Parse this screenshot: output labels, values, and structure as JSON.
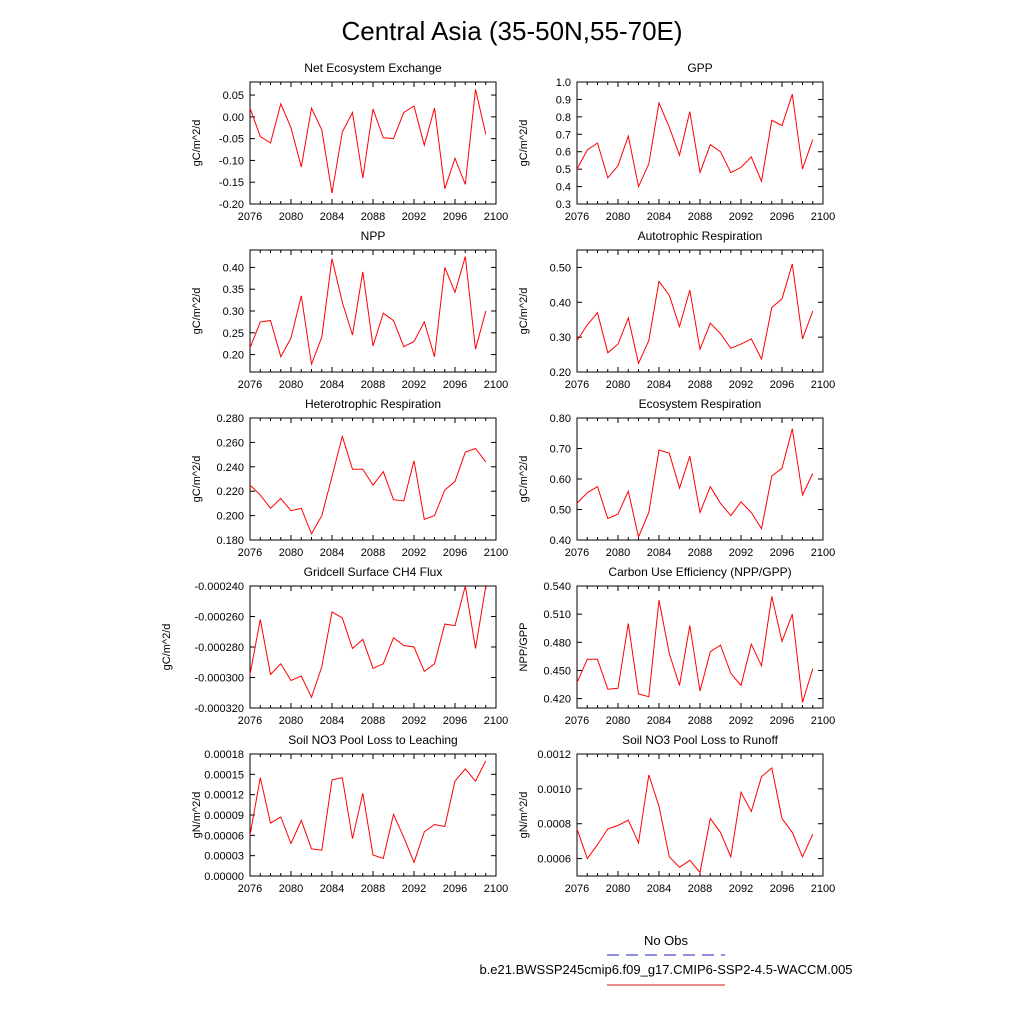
{
  "figure": {
    "title": "Central Asia (35-50N,55-70E)",
    "line_color": "#ff0000",
    "obs_color": "#4b4bd0"
  },
  "legend": {
    "items": [
      {
        "label": "No Obs",
        "style": "dashed",
        "color": "#4b4bd0"
      },
      {
        "label": "b.e21.BWSSP245cmip6.f09_g17.CMIP6-SSP2-4.5-WACCM.005",
        "style": "solid",
        "color": "#e04040"
      }
    ]
  },
  "chart_data": [
    {
      "type": "line",
      "title": "Net Ecosystem Exchange",
      "ylabel": "gC/m^2/d",
      "xlim": [
        2076,
        2100
      ],
      "ylim": [
        -0.2,
        0.08
      ],
      "xticks": [
        2076,
        2080,
        2084,
        2088,
        2092,
        2096,
        2100
      ],
      "yticks": [
        -0.2,
        -0.15,
        -0.1,
        -0.05,
        0.0,
        0.05
      ],
      "ytick_labels": [
        "-0.20",
        "-0.15",
        "-0.10",
        "-0.05",
        "0.00",
        "0.05"
      ],
      "x": [
        2076,
        2077,
        2078,
        2079,
        2080,
        2081,
        2082,
        2083,
        2084,
        2085,
        2086,
        2087,
        2088,
        2089,
        2090,
        2091,
        2092,
        2093,
        2094,
        2095,
        2096,
        2097,
        2098,
        2099
      ],
      "y": [
        0.02,
        -0.045,
        -0.06,
        0.03,
        -0.025,
        -0.115,
        0.02,
        -0.03,
        -0.175,
        -0.035,
        0.01,
        -0.14,
        0.018,
        -0.048,
        -0.05,
        0.01,
        0.025,
        -0.065,
        0.02,
        -0.165,
        -0.095,
        -0.155,
        0.063,
        -0.04
      ]
    },
    {
      "type": "line",
      "title": "GPP",
      "ylabel": "gC/m^2/d",
      "xlim": [
        2076,
        2100
      ],
      "ylim": [
        0.3,
        1.0
      ],
      "xticks": [
        2076,
        2080,
        2084,
        2088,
        2092,
        2096,
        2100
      ],
      "yticks": [
        0.3,
        0.4,
        0.5,
        0.6,
        0.7,
        0.8,
        0.9,
        1.0
      ],
      "ytick_labels": [
        "0.3",
        "0.4",
        "0.5",
        "0.6",
        "0.7",
        "0.8",
        "0.9",
        "1.0"
      ],
      "x": [
        2076,
        2077,
        2078,
        2079,
        2080,
        2081,
        2082,
        2083,
        2084,
        2085,
        2086,
        2087,
        2088,
        2089,
        2090,
        2091,
        2092,
        2093,
        2094,
        2095,
        2096,
        2097,
        2098,
        2099
      ],
      "y": [
        0.5,
        0.61,
        0.65,
        0.45,
        0.52,
        0.69,
        0.4,
        0.53,
        0.88,
        0.74,
        0.58,
        0.83,
        0.48,
        0.64,
        0.6,
        0.48,
        0.51,
        0.57,
        0.43,
        0.78,
        0.75,
        0.93,
        0.5,
        0.67
      ]
    },
    {
      "type": "line",
      "title": "NPP",
      "ylabel": "gC/m^2/d",
      "xlim": [
        2076,
        2100
      ],
      "ylim": [
        0.16,
        0.44
      ],
      "xticks": [
        2076,
        2080,
        2084,
        2088,
        2092,
        2096,
        2100
      ],
      "yticks": [
        0.2,
        0.25,
        0.3,
        0.35,
        0.4
      ],
      "ytick_labels": [
        "0.20",
        "0.25",
        "0.30",
        "0.35",
        "0.40"
      ],
      "x": [
        2076,
        2077,
        2078,
        2079,
        2080,
        2081,
        2082,
        2083,
        2084,
        2085,
        2086,
        2087,
        2088,
        2089,
        2090,
        2091,
        2092,
        2093,
        2094,
        2095,
        2096,
        2097,
        2098,
        2099
      ],
      "y": [
        0.215,
        0.275,
        0.278,
        0.195,
        0.238,
        0.335,
        0.178,
        0.24,
        0.42,
        0.32,
        0.245,
        0.39,
        0.22,
        0.295,
        0.278,
        0.218,
        0.23,
        0.275,
        0.195,
        0.4,
        0.343,
        0.425,
        0.212,
        0.3
      ]
    },
    {
      "type": "line",
      "title": "Autotrophic Respiration",
      "ylabel": "gC/m^2/d",
      "xlim": [
        2076,
        2100
      ],
      "ylim": [
        0.2,
        0.55
      ],
      "xticks": [
        2076,
        2080,
        2084,
        2088,
        2092,
        2096,
        2100
      ],
      "yticks": [
        0.2,
        0.3,
        0.4,
        0.5
      ],
      "ytick_labels": [
        "0.20",
        "0.30",
        "0.40",
        "0.50"
      ],
      "x": [
        2076,
        2077,
        2078,
        2079,
        2080,
        2081,
        2082,
        2083,
        2084,
        2085,
        2086,
        2087,
        2088,
        2089,
        2090,
        2091,
        2092,
        2093,
        2094,
        2095,
        2096,
        2097,
        2098,
        2099
      ],
      "y": [
        0.29,
        0.335,
        0.37,
        0.255,
        0.28,
        0.355,
        0.225,
        0.29,
        0.46,
        0.42,
        0.33,
        0.435,
        0.265,
        0.34,
        0.31,
        0.268,
        0.28,
        0.295,
        0.237,
        0.385,
        0.41,
        0.51,
        0.295,
        0.375
      ]
    },
    {
      "type": "line",
      "title": "Heterotrophic Respiration",
      "ylabel": "gC/m^2/d",
      "xlim": [
        2076,
        2100
      ],
      "ylim": [
        0.18,
        0.28
      ],
      "xticks": [
        2076,
        2080,
        2084,
        2088,
        2092,
        2096,
        2100
      ],
      "yticks": [
        0.18,
        0.2,
        0.22,
        0.24,
        0.26,
        0.28
      ],
      "ytick_labels": [
        "0.180",
        "0.200",
        "0.220",
        "0.240",
        "0.260",
        "0.280"
      ],
      "x": [
        2076,
        2077,
        2078,
        2079,
        2080,
        2081,
        2082,
        2083,
        2084,
        2085,
        2086,
        2087,
        2088,
        2089,
        2090,
        2091,
        2092,
        2093,
        2094,
        2095,
        2096,
        2097,
        2098,
        2099
      ],
      "y": [
        0.225,
        0.217,
        0.206,
        0.214,
        0.204,
        0.206,
        0.185,
        0.2,
        0.232,
        0.265,
        0.238,
        0.238,
        0.225,
        0.236,
        0.213,
        0.212,
        0.245,
        0.197,
        0.2,
        0.221,
        0.228,
        0.252,
        0.255,
        0.244
      ]
    },
    {
      "type": "line",
      "title": "Ecosystem Respiration",
      "ylabel": "gC/m^2/d",
      "xlim": [
        2076,
        2100
      ],
      "ylim": [
        0.4,
        0.8
      ],
      "xticks": [
        2076,
        2080,
        2084,
        2088,
        2092,
        2096,
        2100
      ],
      "yticks": [
        0.4,
        0.5,
        0.6,
        0.7,
        0.8
      ],
      "ytick_labels": [
        "0.40",
        "0.50",
        "0.60",
        "0.70",
        "0.80"
      ],
      "x": [
        2076,
        2077,
        2078,
        2079,
        2080,
        2081,
        2082,
        2083,
        2084,
        2085,
        2086,
        2087,
        2088,
        2089,
        2090,
        2091,
        2092,
        2093,
        2094,
        2095,
        2096,
        2097,
        2098,
        2099
      ],
      "y": [
        0.52,
        0.555,
        0.575,
        0.47,
        0.485,
        0.56,
        0.41,
        0.49,
        0.695,
        0.685,
        0.57,
        0.675,
        0.49,
        0.575,
        0.52,
        0.48,
        0.525,
        0.49,
        0.437,
        0.61,
        0.635,
        0.765,
        0.548,
        0.618
      ]
    },
    {
      "type": "line",
      "title": "Gridcell Surface CH4 Flux",
      "ylabel": "gC/m^2/d",
      "xlim": [
        2076,
        2100
      ],
      "ylim": [
        -0.00032,
        -0.00024
      ],
      "xticks": [
        2076,
        2080,
        2084,
        2088,
        2092,
        2096,
        2100
      ],
      "yticks": [
        -0.00032,
        -0.0003,
        -0.00028,
        -0.00026,
        -0.00024
      ],
      "ytick_labels": [
        "-0.000320",
        "-0.000300",
        "-0.000280",
        "-0.000260",
        "-0.000240"
      ],
      "x": [
        2076,
        2077,
        2078,
        2079,
        2080,
        2081,
        2082,
        2083,
        2084,
        2085,
        2086,
        2087,
        2088,
        2089,
        2090,
        2091,
        2092,
        2093,
        2094,
        2095,
        2096,
        2097,
        2098,
        2099
      ],
      "y": [
        -0.000298,
        -0.000262,
        -0.000298,
        -0.000291,
        -0.000302,
        -0.000299,
        -0.000313,
        -0.000293,
        -0.000257,
        -0.000261,
        -0.000281,
        -0.000275,
        -0.000294,
        -0.000291,
        -0.000274,
        -0.000279,
        -0.00028,
        -0.000296,
        -0.000291,
        -0.000265,
        -0.000266,
        -0.00024,
        -0.000281,
        -0.00024
      ]
    },
    {
      "type": "line",
      "title": "Carbon Use Efficiency (NPP/GPP)",
      "ylabel": "NPP/GPP",
      "xlim": [
        2076,
        2100
      ],
      "ylim": [
        0.41,
        0.54
      ],
      "xticks": [
        2076,
        2080,
        2084,
        2088,
        2092,
        2096,
        2100
      ],
      "yticks": [
        0.42,
        0.45,
        0.48,
        0.51,
        0.54
      ],
      "ytick_labels": [
        "0.420",
        "0.450",
        "0.480",
        "0.510",
        "0.540"
      ],
      "x": [
        2076,
        2077,
        2078,
        2079,
        2080,
        2081,
        2082,
        2083,
        2084,
        2085,
        2086,
        2087,
        2088,
        2089,
        2090,
        2091,
        2092,
        2093,
        2094,
        2095,
        2096,
        2097,
        2098,
        2099
      ],
      "y": [
        0.437,
        0.462,
        0.462,
        0.43,
        0.431,
        0.5,
        0.425,
        0.422,
        0.525,
        0.468,
        0.434,
        0.498,
        0.428,
        0.47,
        0.477,
        0.447,
        0.434,
        0.478,
        0.455,
        0.529,
        0.481,
        0.51,
        0.416,
        0.452
      ]
    },
    {
      "type": "line",
      "title": "Soil NO3 Pool Loss to Leaching",
      "ylabel": "gN/m^2/d",
      "xlim": [
        2076,
        2100
      ],
      "ylim": [
        0.0,
        0.00018
      ],
      "xticks": [
        2076,
        2080,
        2084,
        2088,
        2092,
        2096,
        2100
      ],
      "yticks": [
        0.0,
        3e-05,
        6e-05,
        9e-05,
        0.00012,
        0.00015,
        0.00018
      ],
      "ytick_labels": [
        "0.00000",
        "0.00003",
        "0.00006",
        "0.00009",
        "0.00012",
        "0.00015",
        "0.00018"
      ],
      "x": [
        2076,
        2077,
        2078,
        2079,
        2080,
        2081,
        2082,
        2083,
        2084,
        2085,
        2086,
        2087,
        2088,
        2089,
        2090,
        2091,
        2092,
        2093,
        2094,
        2095,
        2096,
        2097,
        2098,
        2099
      ],
      "y": [
        6e-05,
        0.000145,
        7.8e-05,
        8.7e-05,
        4.8e-05,
        8.2e-05,
        4e-05,
        3.8e-05,
        0.000142,
        0.000145,
        5.5e-05,
        0.000122,
        3.1e-05,
        2.6e-05,
        9.1e-05,
        5.7e-05,
        2e-05,
        6.5e-05,
        7.6e-05,
        7.3e-05,
        0.00014,
        0.000158,
        0.00014,
        0.00017
      ]
    },
    {
      "type": "line",
      "title": "Soil NO3 Pool Loss to Runoff",
      "ylabel": "gN/m^2/d",
      "xlim": [
        2076,
        2100
      ],
      "ylim": [
        0.0005,
        0.0012
      ],
      "xticks": [
        2076,
        2080,
        2084,
        2088,
        2092,
        2096,
        2100
      ],
      "yticks": [
        0.0006,
        0.0008,
        0.001,
        0.0012
      ],
      "ytick_labels": [
        "0.0006",
        "0.0008",
        "0.0010",
        "0.0012"
      ],
      "x": [
        2076,
        2077,
        2078,
        2079,
        2080,
        2081,
        2082,
        2083,
        2084,
        2085,
        2086,
        2087,
        2088,
        2089,
        2090,
        2091,
        2092,
        2093,
        2094,
        2095,
        2096,
        2097,
        2098,
        2099
      ],
      "y": [
        0.00077,
        0.0006,
        0.00068,
        0.00077,
        0.00079,
        0.00082,
        0.00069,
        0.00108,
        0.0009,
        0.00061,
        0.00055,
        0.00059,
        0.00052,
        0.00083,
        0.00075,
        0.00061,
        0.00098,
        0.00087,
        0.00107,
        0.00112,
        0.00083,
        0.00075,
        0.00061,
        0.00074
      ]
    }
  ]
}
